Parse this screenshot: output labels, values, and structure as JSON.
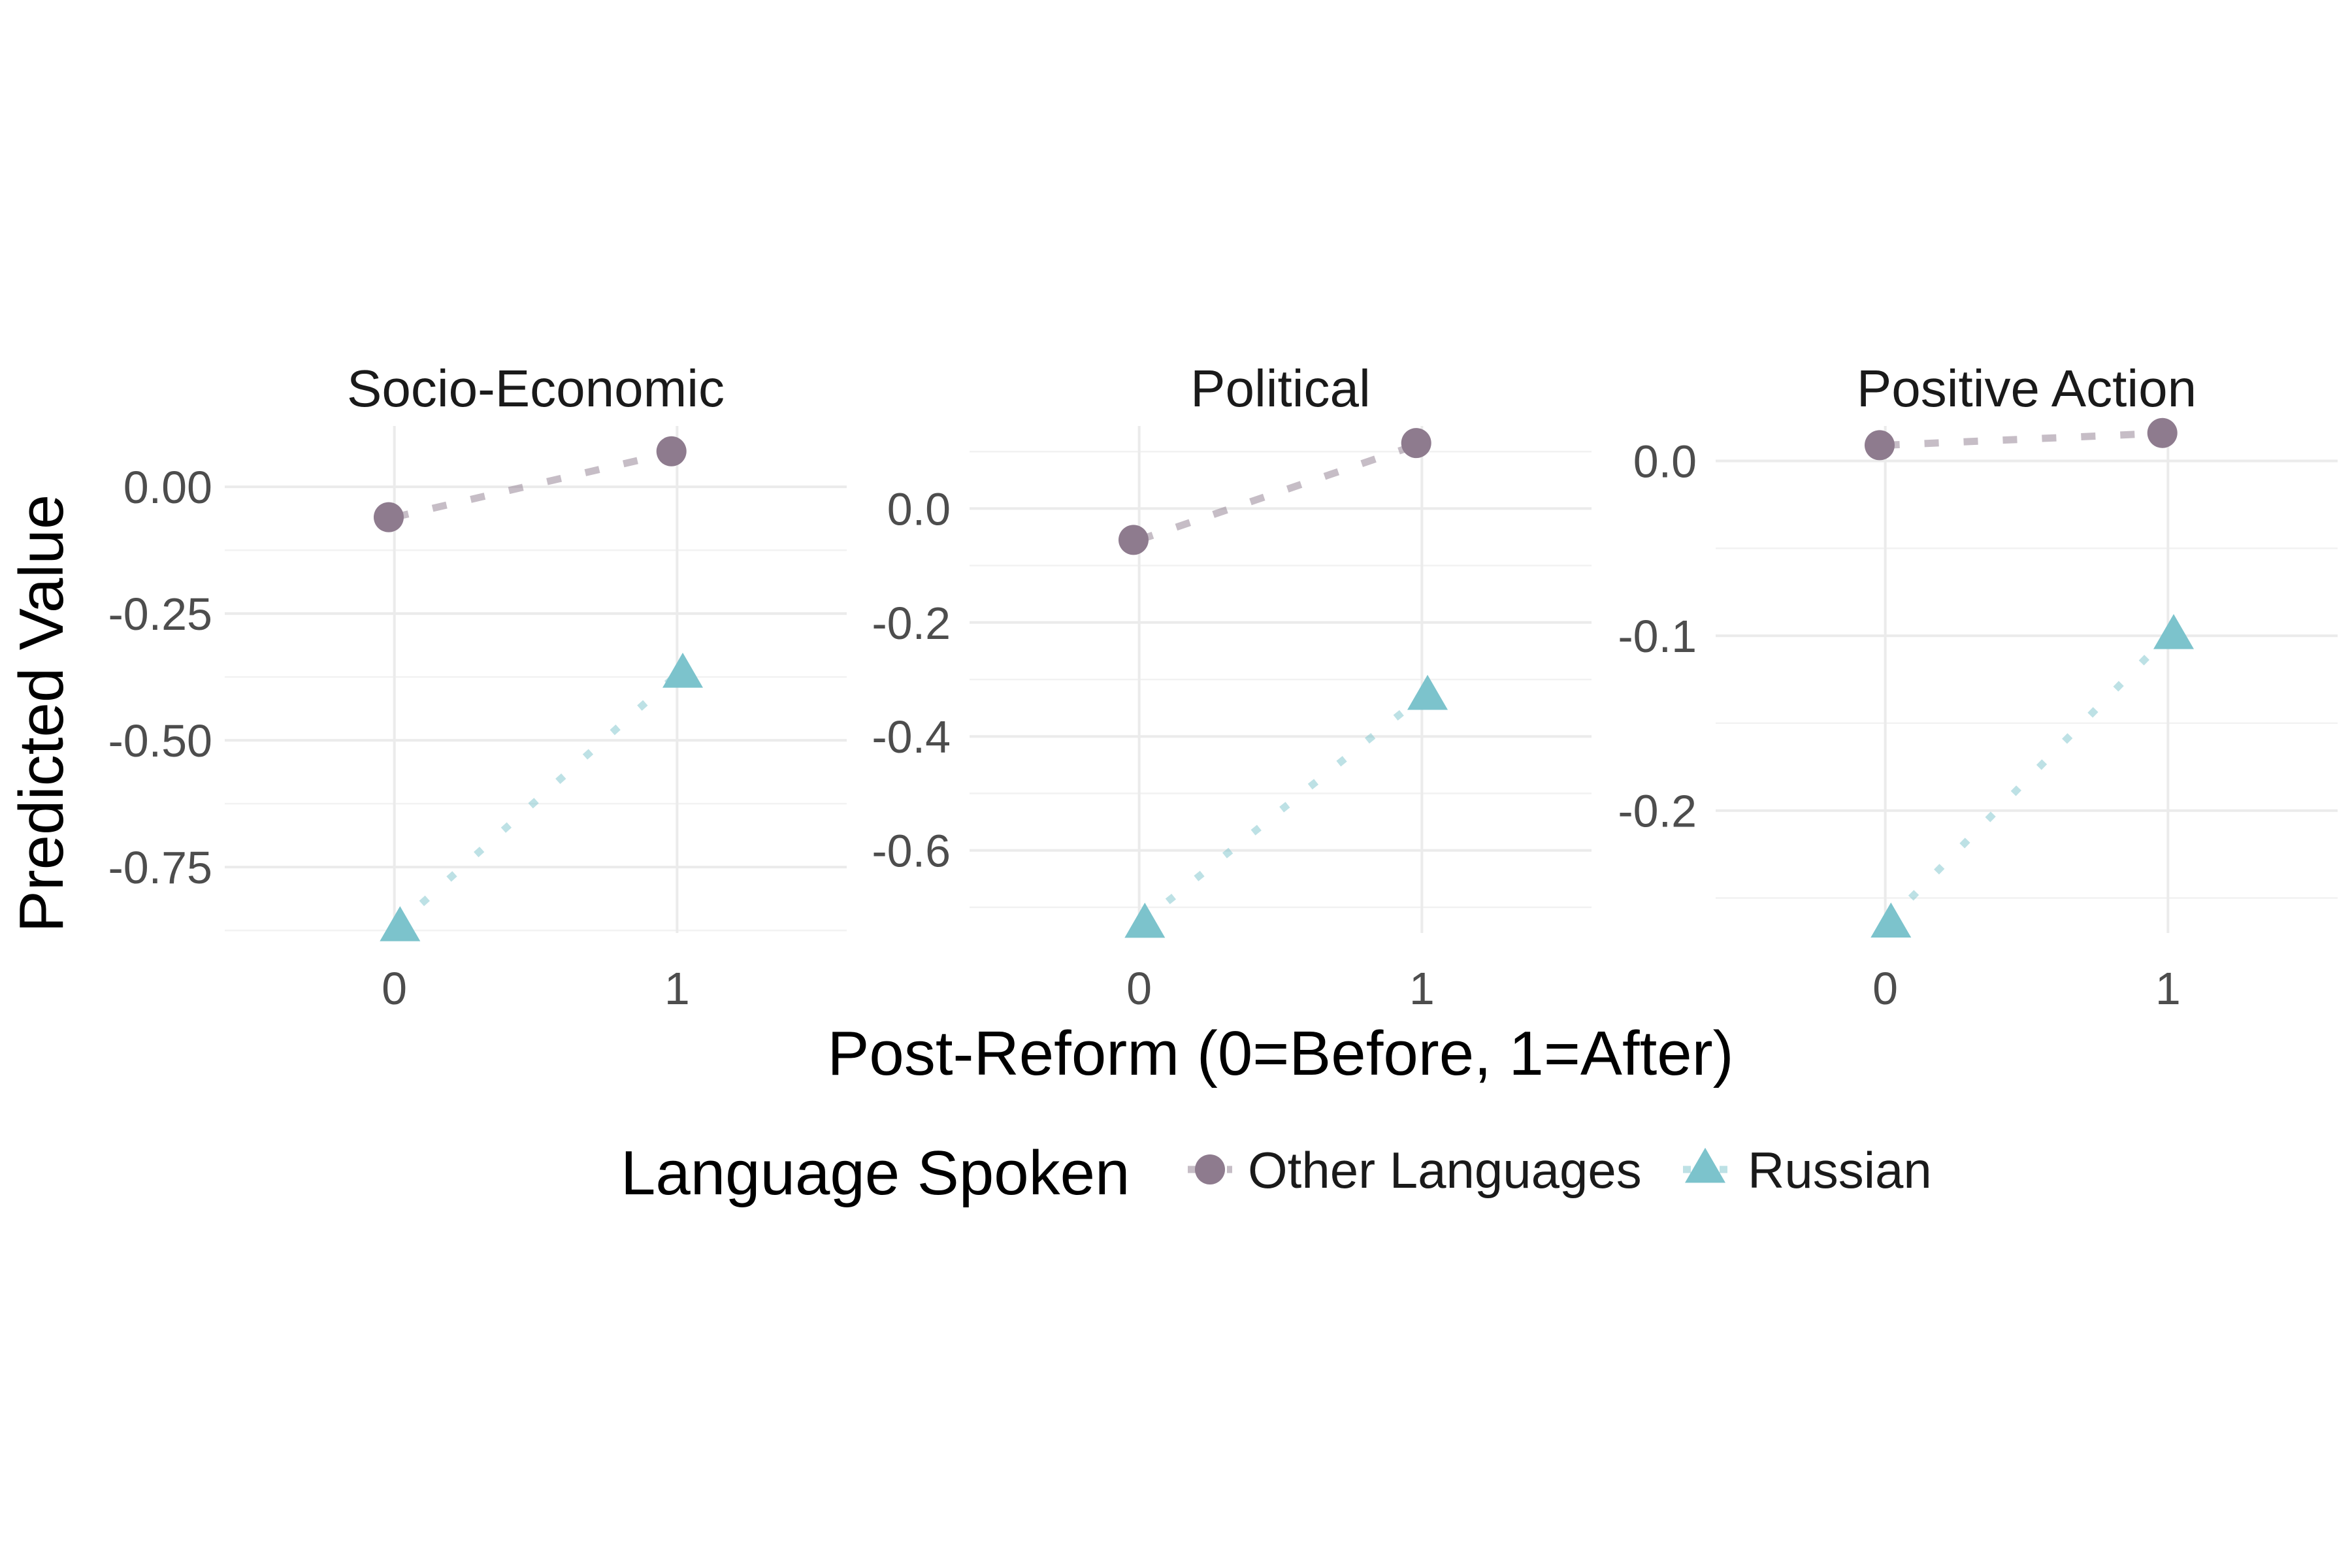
{
  "chart_data": {
    "type": "line",
    "xlabel": "Post-Reform (0=Before, 1=After)",
    "ylabel": "Predicted Value",
    "grid": true,
    "legend": {
      "title": "Language Spoken",
      "placement": "bottom",
      "entries": [
        {
          "name": "Other Languages",
          "color": "#8E7B8E",
          "shape": "circle"
        },
        {
          "name": "Russian",
          "color": "#7CC3CC",
          "shape": "triangle"
        }
      ]
    },
    "x_ticks": [
      "0",
      "1"
    ],
    "xlim": [
      -0.6,
      1.6
    ],
    "panels": [
      {
        "title": "Socio-Economic",
        "ylim": [
          -0.88,
          0.12
        ],
        "y_ticks": [
          0.0,
          -0.25,
          -0.5,
          -0.75
        ],
        "y_tick_labels": [
          "0.00",
          "-0.25",
          "-0.50",
          "-0.75"
        ],
        "series": [
          {
            "name": "Other Languages",
            "x": [
              0,
              1
            ],
            "y": [
              -0.06,
              0.07
            ]
          },
          {
            "name": "Russian",
            "x": [
              0,
              1
            ],
            "y": [
              -0.87,
              -0.37
            ]
          }
        ]
      },
      {
        "title": "Political",
        "ylim": [
          -0.745,
          0.145
        ],
        "y_ticks": [
          0.0,
          -0.2,
          -0.4,
          -0.6
        ],
        "y_tick_labels": [
          "0.0",
          "-0.2",
          "-0.4",
          "-0.6"
        ],
        "series": [
          {
            "name": "Other Languages",
            "x": [
              0,
              1
            ],
            "y": [
              -0.055,
              0.115
            ]
          },
          {
            "name": "Russian",
            "x": [
              0,
              1
            ],
            "y": [
              -0.73,
              -0.33
            ]
          }
        ]
      },
      {
        "title": "Positive Action",
        "ylim": [
          -0.27,
          0.02
        ],
        "y_ticks": [
          0.0,
          -0.1,
          -0.2
        ],
        "y_tick_labels": [
          "0.0",
          "-0.1",
          "-0.2"
        ],
        "series": [
          {
            "name": "Other Languages",
            "x": [
              0,
              1
            ],
            "y": [
              0.009,
              0.016
            ]
          },
          {
            "name": "Russian",
            "x": [
              0,
              1
            ],
            "y": [
              -0.265,
              -0.1
            ]
          }
        ]
      }
    ]
  }
}
